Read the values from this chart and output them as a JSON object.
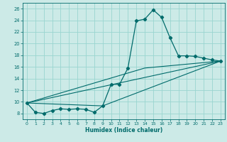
{
  "title": "",
  "xlabel": "Humidex (Indice chaleur)",
  "ylabel": "",
  "bg_color": "#cceae7",
  "grid_color": "#99d5d0",
  "line_color": "#006b6b",
  "xlim": [
    -0.5,
    23.5
  ],
  "ylim": [
    7.0,
    27.0
  ],
  "yticks": [
    8,
    10,
    12,
    14,
    16,
    18,
    20,
    22,
    24,
    26
  ],
  "xticks": [
    0,
    1,
    2,
    3,
    4,
    5,
    6,
    7,
    8,
    9,
    10,
    11,
    12,
    13,
    14,
    15,
    16,
    17,
    18,
    19,
    20,
    21,
    22,
    23
  ],
  "main_x": [
    0,
    1,
    2,
    3,
    4,
    5,
    6,
    7,
    8,
    9,
    10,
    11,
    12,
    13,
    14,
    15,
    16,
    17,
    18,
    19,
    20,
    21,
    22,
    23
  ],
  "main_y": [
    9.8,
    8.2,
    8.0,
    8.5,
    8.8,
    8.7,
    8.8,
    8.7,
    8.2,
    9.3,
    13.0,
    13.0,
    15.8,
    23.9,
    24.2,
    25.8,
    24.5,
    21.0,
    17.9,
    17.9,
    17.8,
    17.5,
    17.2,
    17.0
  ],
  "ref_lines": [
    {
      "x": [
        0,
        23
      ],
      "y": [
        9.8,
        17.0
      ]
    },
    {
      "x": [
        0,
        14,
        23
      ],
      "y": [
        9.8,
        15.8,
        17.0
      ]
    },
    {
      "x": [
        0,
        9,
        23
      ],
      "y": [
        9.8,
        9.3,
        17.0
      ]
    }
  ]
}
